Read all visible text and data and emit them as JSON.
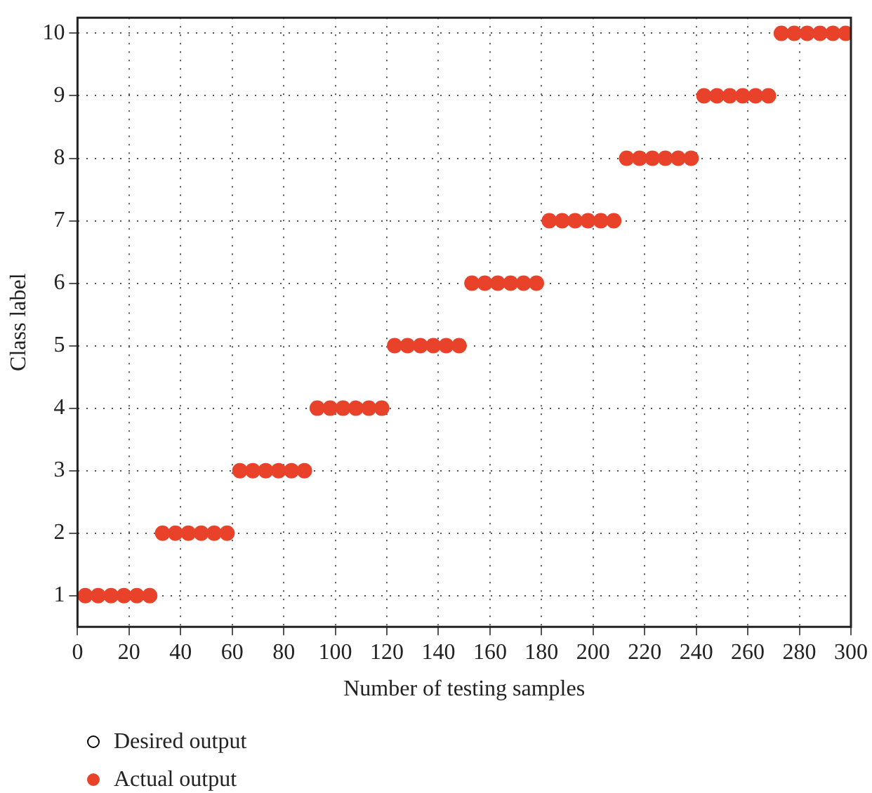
{
  "chart_data": {
    "type": "scatter",
    "xlabel": "Number of testing samples",
    "ylabel": "Class label",
    "xlim": [
      0,
      300
    ],
    "xticks": [
      0,
      20,
      40,
      60,
      80,
      100,
      120,
      140,
      160,
      180,
      200,
      220,
      240,
      260,
      280,
      300
    ],
    "ylim": [
      0.5,
      10.25
    ],
    "yticks": [
      1,
      2,
      3,
      4,
      5,
      6,
      7,
      8,
      9,
      10
    ],
    "grid": true,
    "legend": "bottom",
    "marker": "circle",
    "x": [
      3,
      8,
      13,
      18,
      23,
      28,
      33,
      38,
      43,
      48,
      53,
      58,
      63,
      68,
      73,
      78,
      83,
      88,
      93,
      98,
      103,
      108,
      113,
      118,
      123,
      128,
      133,
      138,
      143,
      148,
      153,
      158,
      163,
      168,
      173,
      178,
      183,
      188,
      193,
      198,
      203,
      208,
      213,
      218,
      223,
      228,
      233,
      238,
      243,
      248,
      253,
      258,
      263,
      268,
      273,
      278,
      283,
      288,
      293,
      298
    ],
    "series": [
      {
        "name": "Desired output",
        "color": "#000000",
        "values": [
          null,
          null,
          null,
          null,
          null,
          null,
          null,
          null,
          null,
          null,
          null,
          null,
          null,
          null,
          null,
          null,
          null,
          null,
          null,
          null,
          null,
          null,
          null,
          null,
          null,
          null,
          null,
          null,
          null,
          null,
          null,
          null,
          null,
          null,
          null,
          null,
          null,
          null,
          null,
          null,
          null,
          null,
          null,
          null,
          null,
          null,
          null,
          null,
          null,
          null,
          null,
          null,
          null,
          null,
          null,
          null,
          null,
          null,
          null,
          null
        ]
      },
      {
        "name": "Actual output",
        "color": "#e8432a",
        "values": [
          1,
          1,
          1,
          1,
          1,
          1,
          2,
          2,
          2,
          2,
          2,
          2,
          3,
          3,
          3,
          3,
          3,
          3,
          4,
          4,
          4,
          4,
          4,
          4,
          5,
          5,
          5,
          5,
          5,
          5,
          6,
          6,
          6,
          6,
          6,
          6,
          7,
          7,
          7,
          7,
          7,
          7,
          8,
          8,
          8,
          8,
          8,
          8,
          9,
          9,
          9,
          9,
          9,
          9,
          10,
          10,
          10,
          10,
          10,
          10
        ]
      }
    ]
  }
}
